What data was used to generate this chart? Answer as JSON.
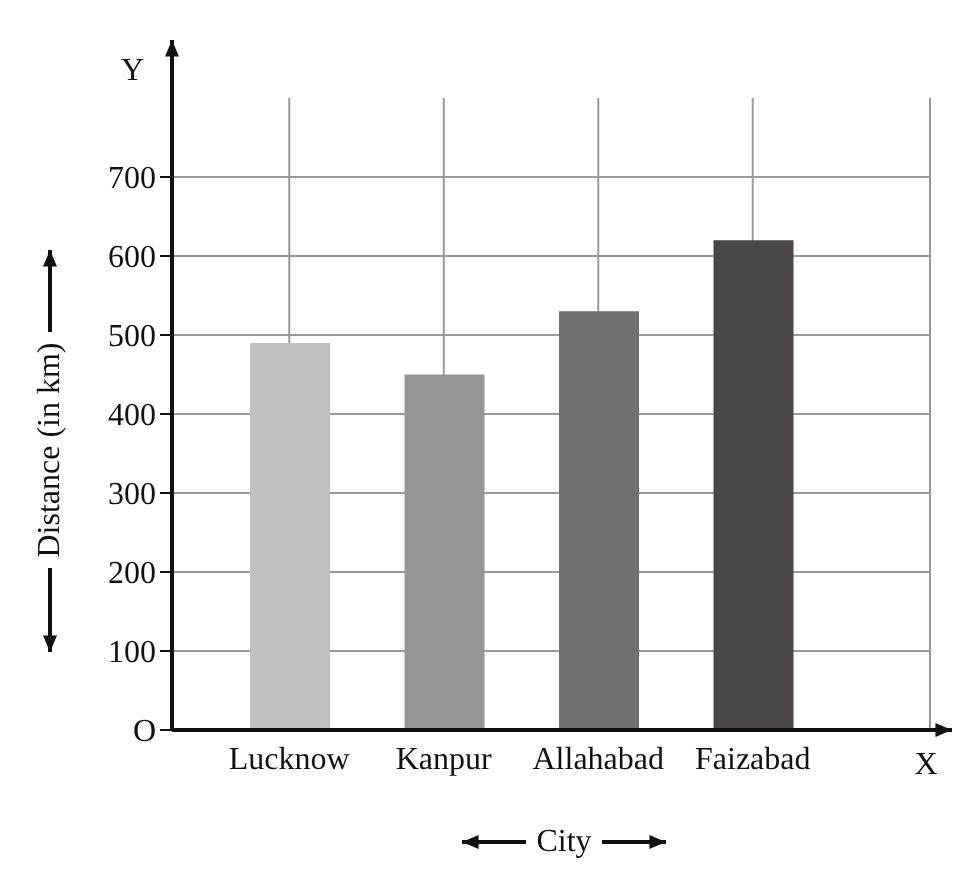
{
  "chart_data": {
    "type": "bar",
    "xlabel": "City",
    "ylabel": "Distance (in km)",
    "annotations": [
      "Y",
      "X"
    ],
    "categories": [
      "Lucknow",
      "Kanpur",
      "Allahabad",
      "Faizabad"
    ],
    "values": [
      490,
      450,
      530,
      620
    ],
    "colors": [
      "#c0c0c0",
      "#969696",
      "#717171",
      "#4a4646"
    ],
    "ylim": [
      0,
      800
    ],
    "yticks": [
      {
        "value": 0,
        "label": "O"
      },
      100,
      200,
      300,
      400,
      500,
      600,
      700
    ],
    "grid": true
  }
}
